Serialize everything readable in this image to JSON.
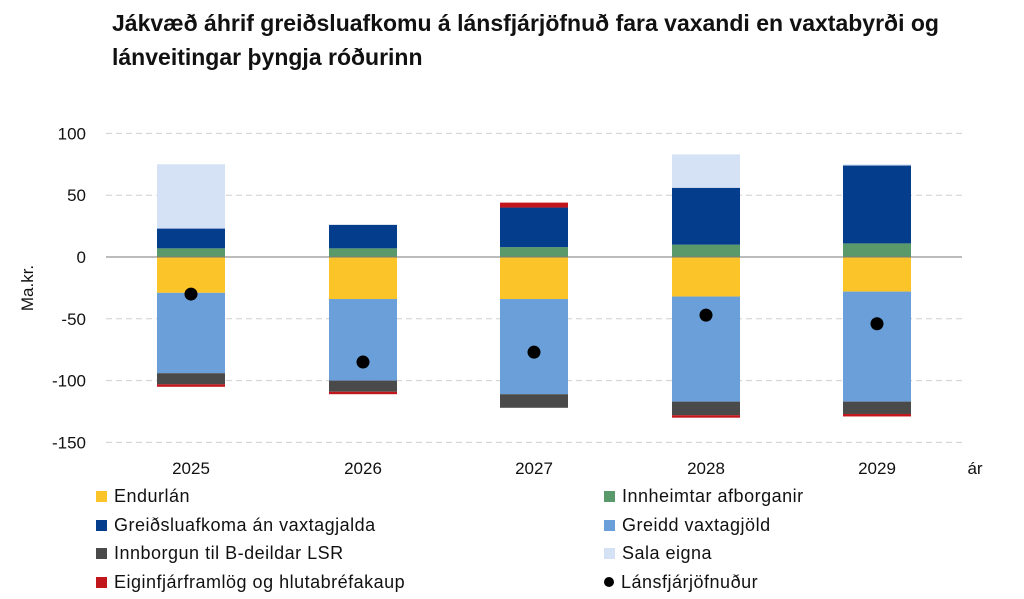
{
  "title": "Jákvæð áhrif greiðsluafkomu á lánsfjárjöfnuð fara vaxandi en vaxtabyrði og lánveitingar þyngja róðurinn",
  "chart_data": {
    "type": "bar",
    "stacked": true,
    "ylabel": "Ma.kr.",
    "xlabel": "ár",
    "ylim": [
      -150,
      100
    ],
    "yticks": [
      100,
      50,
      0,
      -50,
      -100,
      -150
    ],
    "grid": true,
    "legend_position": "bottom",
    "categories": [
      "2025",
      "2026",
      "2027",
      "2028",
      "2029"
    ],
    "series": [
      {
        "name": "Endurlán",
        "color": "#fbc52a",
        "values": [
          -29,
          -34,
          -34,
          -32,
          -28
        ]
      },
      {
        "name": "Innheimtar afborganir",
        "color": "#5a9a6a",
        "values": [
          7,
          7,
          8,
          10,
          11
        ]
      },
      {
        "name": "Greiðsluafkoma án vaxtagjalda",
        "color": "#033d8c",
        "values": [
          16,
          19,
          32,
          46,
          63
        ]
      },
      {
        "name": "Greidd vaxtagjöld",
        "color": "#6a9fd9",
        "values": [
          -65,
          -66,
          -77,
          -85,
          -89
        ]
      },
      {
        "name": "Innborgun til B-deildar LSR",
        "color": "#4a4a4a",
        "values": [
          -9,
          -9,
          -11,
          -11,
          -10
        ]
      },
      {
        "name": "Sala eigna",
        "color": "#d5e1f4",
        "values": [
          52,
          0,
          0,
          27,
          1
        ]
      },
      {
        "name": "Eiginfjárframlög og hlutabréfakaup",
        "color": "#c0161c",
        "values": [
          -2,
          -2,
          4,
          -2,
          -2
        ]
      }
    ],
    "line_series": {
      "name": "Lánsfjárjöfnuður",
      "color": "#000000",
      "values": [
        -30,
        -85,
        -77,
        -47,
        -54
      ]
    }
  },
  "legend": [
    {
      "label": "Endurlán",
      "color": "#fbc52a",
      "marker": "square"
    },
    {
      "label": "Innheimtar afborganir",
      "color": "#5a9a6a",
      "marker": "square"
    },
    {
      "label": "Greiðsluafkoma án vaxtagjalda",
      "color": "#033d8c",
      "marker": "square"
    },
    {
      "label": "Greidd vaxtagjöld",
      "color": "#6a9fd9",
      "marker": "square"
    },
    {
      "label": "Innborgun til B-deildar LSR",
      "color": "#4a4a4a",
      "marker": "square"
    },
    {
      "label": "Sala eigna",
      "color": "#d5e1f4",
      "marker": "square"
    },
    {
      "label": "Eiginfjárframlög og hlutabréfakaup",
      "color": "#c0161c",
      "marker": "square"
    },
    {
      "label": "Lánsfjárjöfnuður",
      "color": "#000000",
      "marker": "dot"
    }
  ]
}
